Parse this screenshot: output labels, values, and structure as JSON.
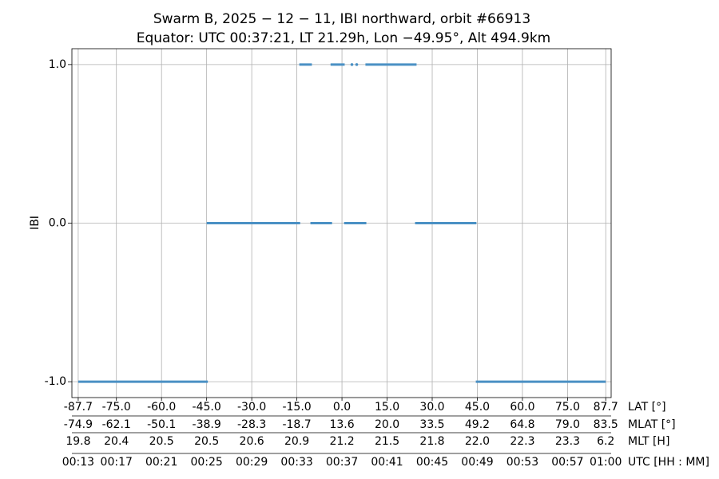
{
  "chart_data": {
    "type": "line",
    "title": "Swarm B, 2025 − 12 − 11, IBI northward, orbit #66913",
    "subtitle": "Equator: UTC 00:37:21, LT 21.29h, Lon −49.95°, Alt 494.9km",
    "ylabel": "IBI",
    "xlabel": "LAT [°]",
    "grid": true,
    "xlim": [
      -89.8,
      89.5
    ],
    "ylim": [
      -1.1,
      1.1
    ],
    "yticks": [
      {
        "value": -1,
        "label": "-1.0"
      },
      {
        "value": 0,
        "label": "0.0"
      },
      {
        "value": 1,
        "label": "1.0"
      }
    ],
    "xticks": [
      {
        "value": -87.7,
        "label": "-87.7"
      },
      {
        "value": -75,
        "label": "-75.0"
      },
      {
        "value": -60,
        "label": "-60.0"
      },
      {
        "value": -45,
        "label": "-45.0"
      },
      {
        "value": -30,
        "label": "-30.0"
      },
      {
        "value": -15,
        "label": "-15.0"
      },
      {
        "value": 0,
        "label": "0.0"
      },
      {
        "value": 15,
        "label": "15.0"
      },
      {
        "value": 30,
        "label": "30.0"
      },
      {
        "value": 45,
        "label": "45.0"
      },
      {
        "value": 60,
        "label": "60.0"
      },
      {
        "value": 75,
        "label": "75.0"
      },
      {
        "value": 87.7,
        "label": "87.7"
      }
    ],
    "tick_rows": [
      {
        "name": "MLAT [°]",
        "labels": [
          "-74.9",
          "-62.1",
          "-50.1",
          "-38.9",
          "-28.3",
          "-18.7",
          "13.6",
          "20.0",
          "33.5",
          "49.2",
          "64.8",
          "79.0",
          "83.5"
        ]
      },
      {
        "name": "MLT [H]",
        "labels": [
          "19.8",
          "20.4",
          "20.5",
          "20.5",
          "20.6",
          "20.9",
          "21.2",
          "21.5",
          "21.8",
          "22.0",
          "22.3",
          "23.3",
          "6.2"
        ]
      },
      {
        "name": "UTC [HH : MM]",
        "labels": [
          "00:13",
          "00:17",
          "00:21",
          "00:25",
          "00:29",
          "00:33",
          "00:37",
          "00:41",
          "00:45",
          "00:49",
          "00:53",
          "00:57",
          "01:00"
        ]
      }
    ],
    "series": [
      {
        "color": "#4a90c4",
        "x": [
          -87.7,
          -44.6,
          null,
          -45.0,
          -13.9,
          null,
          -10.5,
          -3.3,
          null,
          0.7,
          8.1,
          null,
          24.3,
          44.7,
          null,
          44.5,
          87.7,
          null,
          -14.2,
          -10.0,
          null,
          -3.8,
          0.9,
          null,
          3.3,
          null,
          4.9,
          null,
          7.8,
          24.8
        ],
        "values": [
          -1,
          -1,
          null,
          0,
          0,
          null,
          0,
          0,
          null,
          0,
          0,
          null,
          0,
          0,
          null,
          -1,
          -1,
          null,
          1,
          1,
          null,
          1,
          1,
          null,
          1,
          null,
          1,
          null,
          1,
          1
        ]
      }
    ]
  }
}
